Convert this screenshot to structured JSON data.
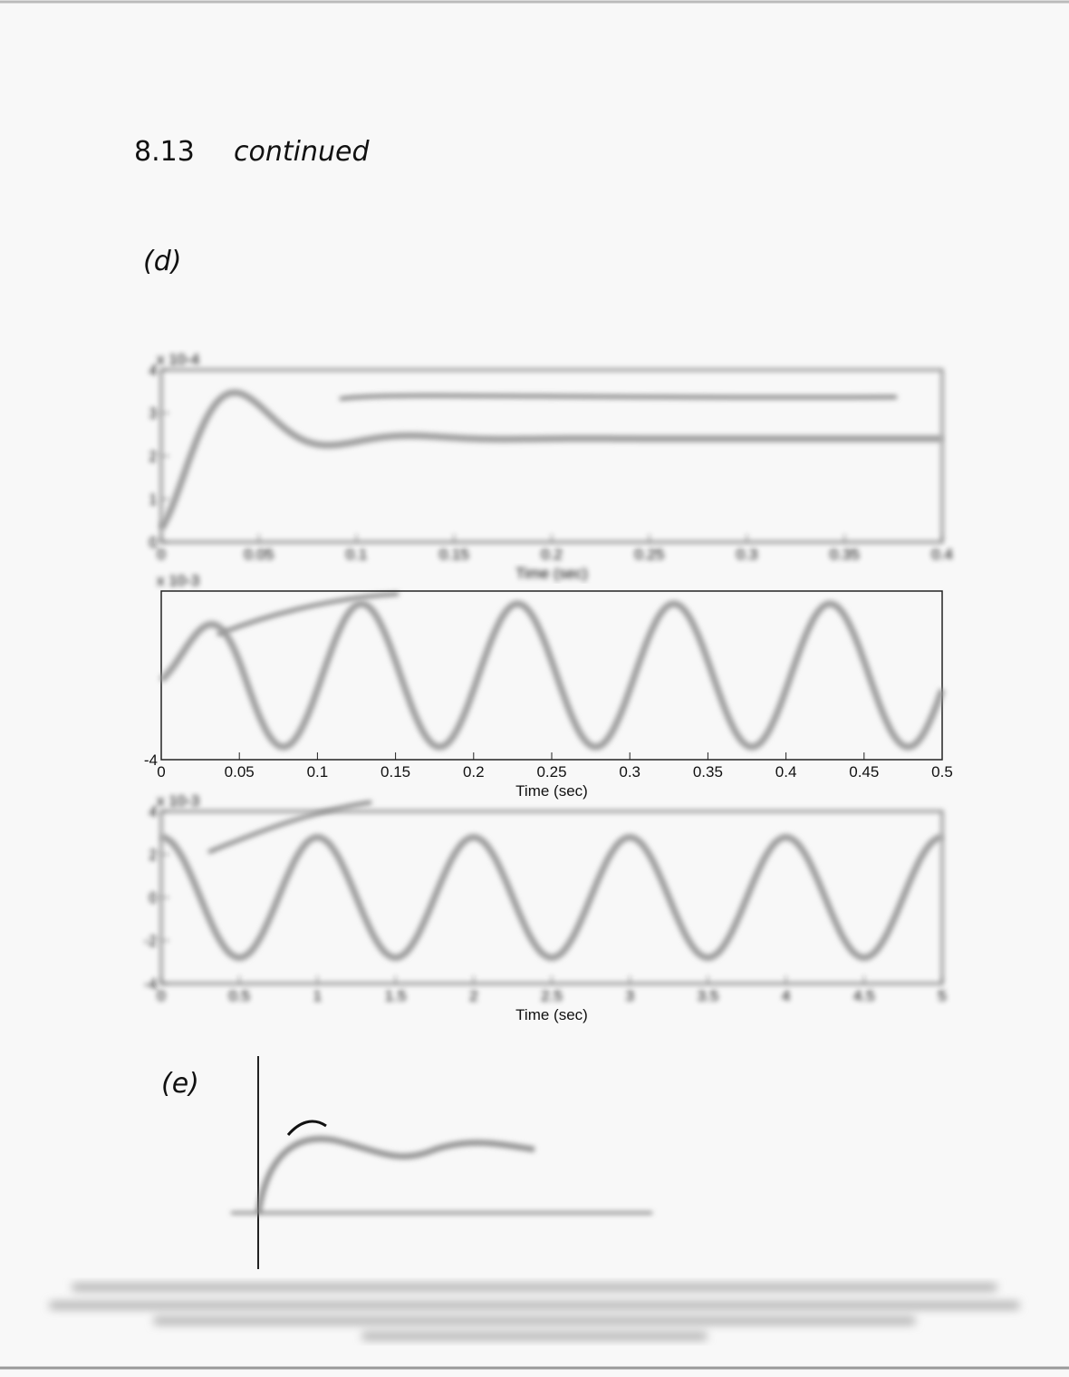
{
  "header": {
    "problem": "8.13",
    "note": "continued"
  },
  "parts": [
    {
      "label": "(d)"
    },
    {
      "label": "(e)"
    }
  ],
  "figure_d": {
    "panels": [
      {
        "exponent": "x 10-4",
        "xlabel": "Time (sec)",
        "xlim": [
          0,
          0.4
        ],
        "xticks": [
          0,
          0.05,
          0.1,
          0.15,
          0.2,
          0.25,
          0.3,
          0.35,
          0.4
        ],
        "ylim": [
          0,
          4
        ],
        "yticks": [
          0,
          1,
          2,
          3,
          4
        ],
        "blurred": true
      },
      {
        "exponent": "x 10-3",
        "xlabel": "Time (sec)",
        "xlim": [
          0,
          0.5
        ],
        "xticks": [
          0,
          0.05,
          0.1,
          0.15,
          0.2,
          0.25,
          0.3,
          0.35,
          0.4,
          0.45,
          0.5
        ],
        "ylim": [
          -4,
          4
        ],
        "yticks": [
          -4
        ],
        "blurred": false
      },
      {
        "exponent": "x 10-3",
        "xlabel": "Time (sec)",
        "xlim": [
          0,
          5
        ],
        "xticks": [
          0,
          0.5,
          1,
          1.5,
          2,
          2.5,
          3,
          3.5,
          4,
          4.5,
          5
        ],
        "ylim": [
          -4,
          4
        ],
        "yticks": [
          -4,
          -2,
          0,
          2,
          4
        ],
        "blurred": true
      }
    ]
  }
}
